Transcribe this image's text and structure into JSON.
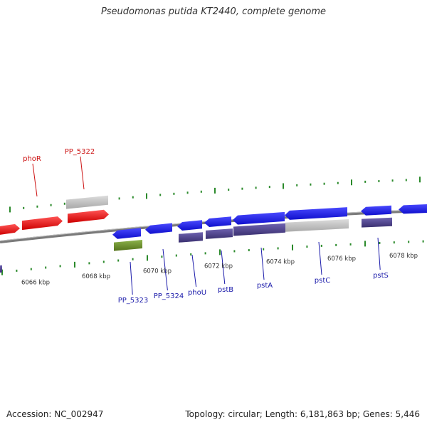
{
  "title": "Pseudomonas putida KT2440, complete genome",
  "footer": {
    "accession": "Accession: NC_002947",
    "summary": "Topology: circular; Length: 6,181,863 bp; Genes: 5,446"
  },
  "colors": {
    "forward_gene": "#ee1111",
    "reverse_gene": "#1a1aee",
    "reverse_cds": "#4a3f8a",
    "pseudo_gene": "#b9b9b9",
    "green_feature": "#6b8e23",
    "tick": "#2b8a2b",
    "backbone": "#7a7a7a",
    "reverse_label": "#1a1aaa",
    "forward_label": "#cc1111"
  },
  "scale_labels": [
    "6066 kbp",
    "6068 kbp",
    "6070 kbp",
    "6072 kbp",
    "6074 kbp",
    "6076 kbp",
    "6078 kbp"
  ],
  "gene_labels_forward": [
    "phoR",
    "PP_5322"
  ],
  "gene_labels_reverse": [
    "PP_5323",
    "PP_5324",
    "phoU",
    "pstB",
    "pstA",
    "pstC",
    "pstS"
  ]
}
